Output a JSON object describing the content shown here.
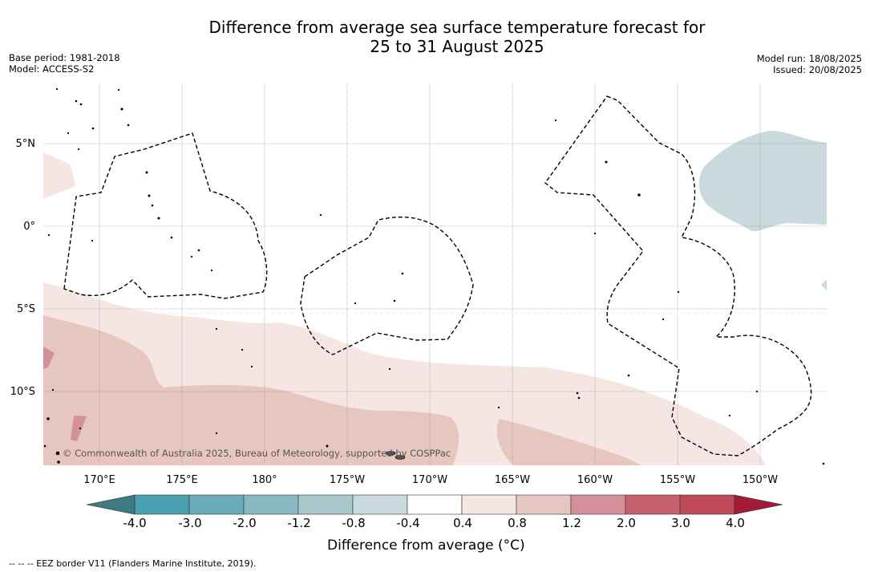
{
  "title": {
    "line1": "Difference from average sea surface temperature forecast for",
    "line2": "25 to 31 August 2025"
  },
  "meta_left": {
    "base_period": "Base period: 1981-2018",
    "model": "Model: ACCESS-S2"
  },
  "meta_right": {
    "model_run": "Model run: 18/08/2025",
    "issued": "Issued: 20/08/2025"
  },
  "axes": {
    "lat_labels": [
      "5°N",
      "0°",
      "5°S",
      "10°S"
    ],
    "lon_labels": [
      "170°E",
      "175°E",
      "180°",
      "175°W",
      "170°W",
      "165°W",
      "160°W",
      "155°W",
      "150°W"
    ]
  },
  "copyright": "© Commonwealth of Australia 2025, Bureau of Meteorology, supported by COSPPac",
  "colorbar": {
    "ticks": [
      "-4.0",
      "-3.0",
      "-2.0",
      "-1.2",
      "-0.8",
      "-0.4",
      "0.4",
      "0.8",
      "1.2",
      "2.0",
      "3.0",
      "4.0"
    ],
    "colors": [
      "#3d7a82",
      "#4aa0b0",
      "#6aacba",
      "#8ab8c2",
      "#a9c8cc",
      "#c8dadc",
      "#ffffff",
      "#f5e6e4",
      "#e8c6c0",
      "#d4909a",
      "#c8606e",
      "#be4a58",
      "#a21a35"
    ],
    "label": "Difference from average (°C)"
  },
  "legend": {
    "eez": "--  --  -- EEZ border V11 (Flanders Marine Institute, 2019)."
  }
}
